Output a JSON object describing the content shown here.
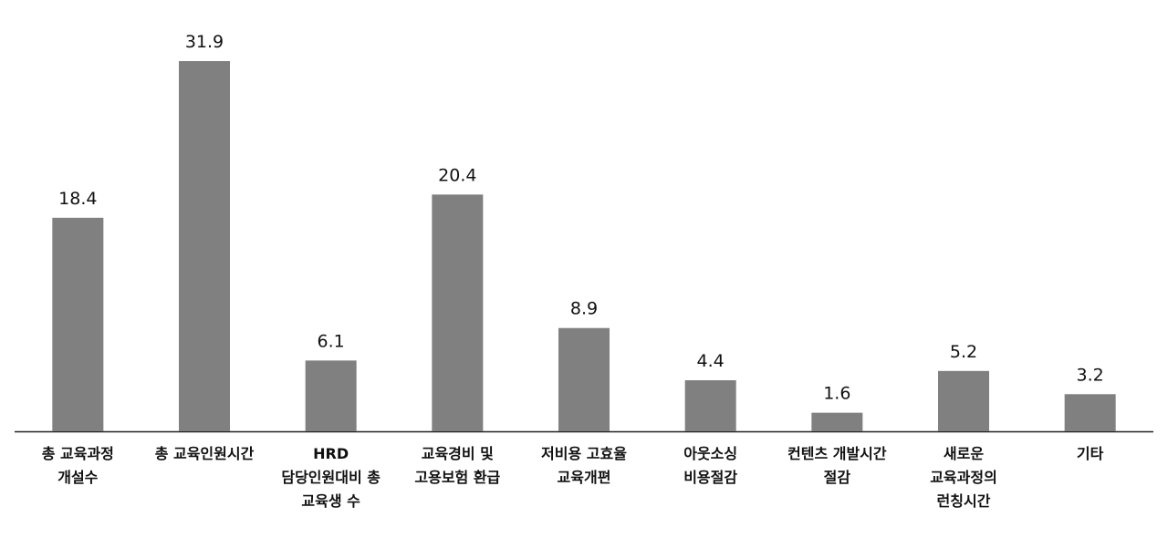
{
  "chart_data": {
    "type": "bar",
    "categories": [
      "총 교육과정\n개설수",
      "총 교육인원시간",
      "HRD\n담당인원대비 총\n교육생 수",
      "교육경비 및\n고용보험 환급",
      "저비용 고효율\n교육개편",
      "아웃소싱\n비용절감",
      "컨텐츠 개발시간\n절감",
      "새로운\n교육과정의\n런칭시간",
      "기타"
    ],
    "values": [
      18.4,
      31.9,
      6.1,
      20.4,
      8.9,
      4.4,
      1.6,
      5.2,
      3.2
    ],
    "color": "#808080"
  }
}
